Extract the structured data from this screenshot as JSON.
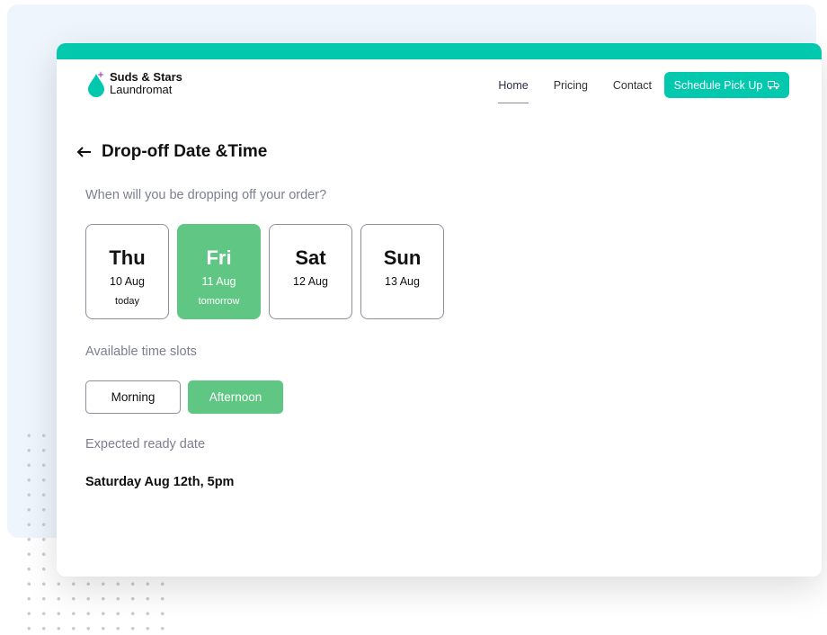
{
  "brand": {
    "line1": "Suds & Stars",
    "line2": "Laundromat",
    "accent": "#02c9ad",
    "selected": "#5fc684"
  },
  "nav": {
    "items": [
      {
        "label": "Home",
        "active": true
      },
      {
        "label": "Pricing"
      },
      {
        "label": "Contact"
      }
    ],
    "cta": "Schedule Pick Up",
    "cta_icon": "truck-icon"
  },
  "page": {
    "title": "Drop-off Date &Time",
    "question": "When will you be dropping off your order?"
  },
  "days": [
    {
      "name": "Thu",
      "date": "10 Aug",
      "note": "today",
      "selected": false
    },
    {
      "name": "Fri",
      "date": "11 Aug",
      "note": "tomorrow",
      "selected": true
    },
    {
      "name": "Sat",
      "date": "12 Aug",
      "note": "",
      "selected": false
    },
    {
      "name": "Sun",
      "date": "13 Aug",
      "note": "",
      "selected": false
    }
  ],
  "slots": {
    "label": "Available time slots",
    "items": [
      {
        "label": "Morning",
        "selected": false
      },
      {
        "label": "Afternoon",
        "selected": true
      }
    ]
  },
  "ready": {
    "label": "Expected ready date",
    "value": "Saturday Aug 12th, 5pm"
  }
}
